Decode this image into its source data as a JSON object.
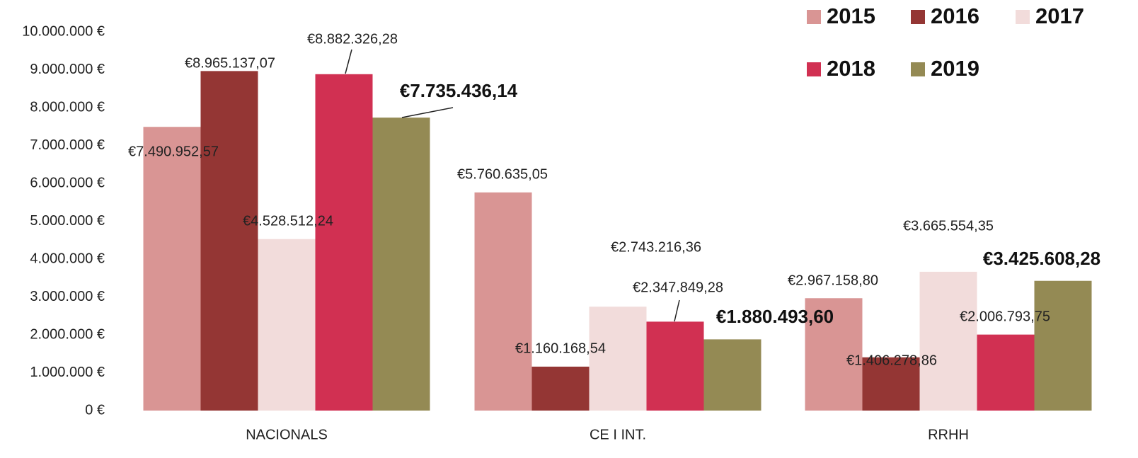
{
  "chart_data": {
    "type": "bar",
    "categories": [
      "NACIONALS",
      "CE I INT.",
      "RRHH"
    ],
    "series": [
      {
        "name": "2015",
        "color": "#d99594",
        "values": [
          7490952.57,
          5760635.05,
          2967158.8
        ],
        "value_labels": [
          "€7.490.952,57",
          "€5.760.635,05",
          "€2.967.158,80"
        ]
      },
      {
        "name": "2016",
        "color": "#943634",
        "values": [
          8965137.07,
          1160168.54,
          1406278.86
        ],
        "value_labels": [
          "€8.965.137,07",
          "€1.160.168,54",
          "€1.406.278,86"
        ]
      },
      {
        "name": "2017",
        "color": "#f2dcdb",
        "values": [
          4528512.24,
          2743216.36,
          3665554.35
        ],
        "value_labels": [
          "€4.528.512,24",
          "€2.743.216,36",
          "€3.665.554,35"
        ]
      },
      {
        "name": "2018",
        "color": "#d13052",
        "values": [
          8882326.28,
          2347849.28,
          2006793.75
        ],
        "value_labels": [
          "€8.882.326,28",
          "€2.347.849,28",
          "€2.006.793,75"
        ]
      },
      {
        "name": "2019",
        "color": "#948a54",
        "values": [
          7735436.14,
          1880493.6,
          3425608.28
        ],
        "value_labels": [
          "€7.735.436,14",
          "€1.880.493,60",
          "€3.425.608,28"
        ]
      }
    ],
    "ylim": [
      0,
      10000000
    ],
    "yticks": [
      {
        "value": 0,
        "label": "0 €"
      },
      {
        "value": 1000000,
        "label": "1.000.000 €"
      },
      {
        "value": 2000000,
        "label": "2.000.000 €"
      },
      {
        "value": 3000000,
        "label": "3.000.000 €"
      },
      {
        "value": 4000000,
        "label": "4.000.000 €"
      },
      {
        "value": 5000000,
        "label": "5.000.000 €"
      },
      {
        "value": 6000000,
        "label": "6.000.000 €"
      },
      {
        "value": 7000000,
        "label": "7.000.000 €"
      },
      {
        "value": 8000000,
        "label": "8.000.000 €"
      },
      {
        "value": 9000000,
        "label": "9.000.000 €"
      },
      {
        "value": 10000000,
        "label": "10.000.000 €"
      }
    ],
    "grid": false,
    "legend": "top-right"
  }
}
